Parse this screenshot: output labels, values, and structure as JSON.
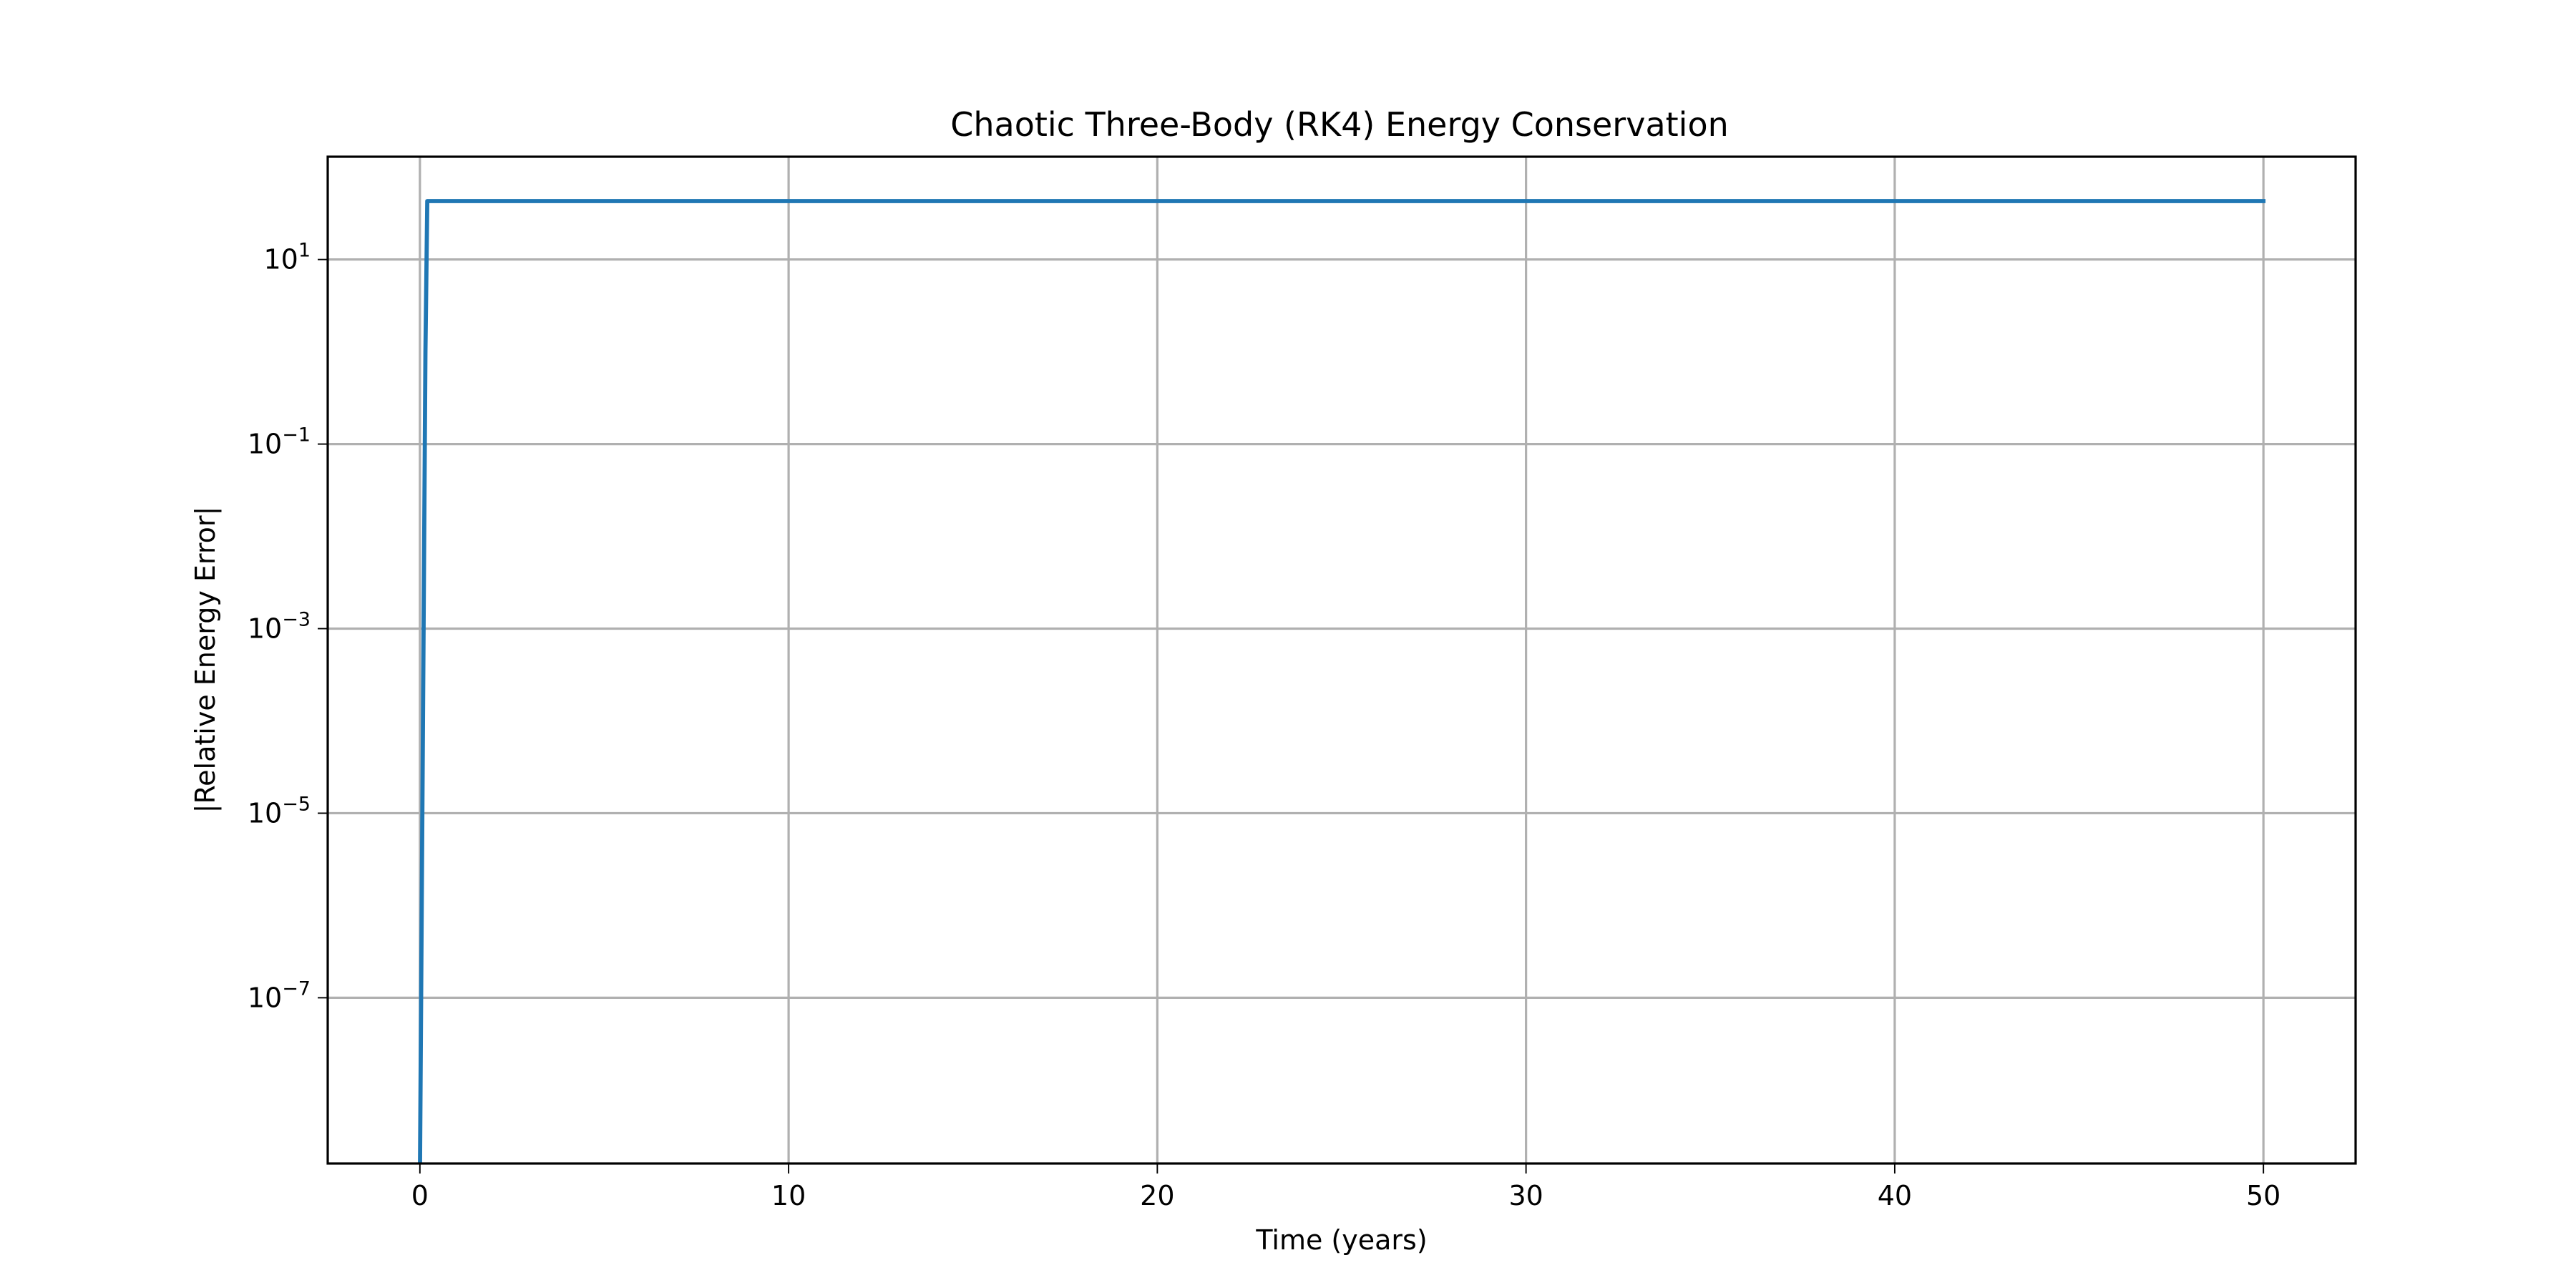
{
  "chart_data": {
    "type": "line",
    "title": "Chaotic Three-Body (RK4) Energy Conservation",
    "xlabel": "Time (years)",
    "ylabel": "|Relative Energy Error|",
    "xlim": [
      -2.5,
      52.5
    ],
    "ylim": [
      1.6e-09,
      130
    ],
    "yscale": "log",
    "grid": true,
    "xticks": [
      0,
      10,
      20,
      30,
      40,
      50
    ],
    "xtick_labels": [
      "0",
      "10",
      "20",
      "30",
      "40",
      "50"
    ],
    "yticks": [
      1e-07,
      1e-05,
      0.001,
      0.1,
      10
    ],
    "ytick_labels": [
      {
        "base": "10",
        "exp": "−7"
      },
      {
        "base": "10",
        "exp": "−5"
      },
      {
        "base": "10",
        "exp": "−3"
      },
      {
        "base": "10",
        "exp": "−1"
      },
      {
        "base": "10",
        "exp": "1"
      }
    ],
    "series": [
      {
        "color": "#1f77b4",
        "x": [
          0.0,
          0.05,
          0.1,
          0.15,
          0.2,
          50.0
        ],
        "y": [
          1e-09,
          1e-06,
          0.001,
          1.0,
          43.0,
          43.0
        ]
      }
    ]
  }
}
